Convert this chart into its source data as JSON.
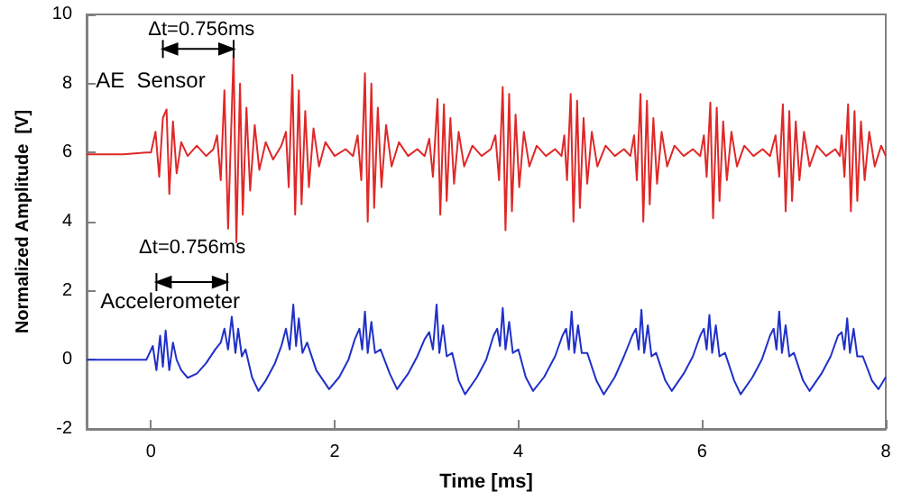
{
  "chart_data": {
    "type": "line",
    "xlabel": "Time [ms]",
    "ylabel": "Normalized Amplitude  [V]",
    "xlim": [
      -0.7,
      8
    ],
    "ylim": [
      -2,
      10
    ],
    "xticks": [
      0,
      2,
      4,
      6,
      8
    ],
    "yticks": [
      -2,
      0,
      2,
      4,
      6,
      8,
      10
    ],
    "grid": false,
    "legend": false,
    "marker": "none",
    "annotations": [
      "Δt=0.756ms",
      "Δt=0.756ms"
    ],
    "series": [
      {
        "name": "AE  Sensor",
        "color": "#e02828",
        "x": [
          -0.7,
          -0.3,
          -0.05,
          0.0,
          0.05,
          0.09,
          0.13,
          0.17,
          0.2,
          0.24,
          0.28,
          0.33,
          0.4,
          0.5,
          0.6,
          0.68,
          0.72,
          0.76,
          0.8,
          0.84,
          0.9,
          0.93,
          0.97,
          1.0,
          1.04,
          1.08,
          1.13,
          1.18,
          1.25,
          1.33,
          1.42,
          1.47,
          1.5,
          1.54,
          1.57,
          1.61,
          1.64,
          1.68,
          1.72,
          1.77,
          1.83,
          1.9,
          2.0,
          2.12,
          2.2,
          2.25,
          2.29,
          2.33,
          2.36,
          2.4,
          2.43,
          2.47,
          2.51,
          2.56,
          2.62,
          2.7,
          2.8,
          2.9,
          2.98,
          3.03,
          3.07,
          3.12,
          3.15,
          3.19,
          3.22,
          3.26,
          3.3,
          3.35,
          3.41,
          3.5,
          3.6,
          3.7,
          3.75,
          3.79,
          3.83,
          3.86,
          3.9,
          3.93,
          3.97,
          4.01,
          4.06,
          4.12,
          4.2,
          4.3,
          4.4,
          4.47,
          4.5,
          4.53,
          4.57,
          4.6,
          4.64,
          4.67,
          4.71,
          4.75,
          4.8,
          4.86,
          4.95,
          5.05,
          5.15,
          5.22,
          5.26,
          5.29,
          5.33,
          5.36,
          5.4,
          5.43,
          5.47,
          5.51,
          5.56,
          5.62,
          5.7,
          5.8,
          5.9,
          5.98,
          6.02,
          6.05,
          6.09,
          6.12,
          6.16,
          6.19,
          6.23,
          6.27,
          6.32,
          6.38,
          6.46,
          6.56,
          6.66,
          6.74,
          6.8,
          6.84,
          6.88,
          6.91,
          6.95,
          6.98,
          7.02,
          7.06,
          7.11,
          7.17,
          7.25,
          7.35,
          7.45,
          7.5,
          7.52,
          7.55,
          7.59,
          7.62,
          7.66,
          7.69,
          7.73,
          7.77,
          7.82,
          7.88,
          7.95,
          8.0
        ],
        "values": [
          5.95,
          5.95,
          6.0,
          6.0,
          6.6,
          5.3,
          7.0,
          7.25,
          4.8,
          6.9,
          5.4,
          6.3,
          5.9,
          6.2,
          5.9,
          6.1,
          6.5,
          5.2,
          7.8,
          3.8,
          8.9,
          3.4,
          8.0,
          4.2,
          7.3,
          4.9,
          6.8,
          5.5,
          6.3,
          5.8,
          6.2,
          6.6,
          5.0,
          8.25,
          4.2,
          7.8,
          4.5,
          7.2,
          5.0,
          6.7,
          5.6,
          6.3,
          5.9,
          6.1,
          5.9,
          6.5,
          5.2,
          8.3,
          4.0,
          8.0,
          4.4,
          7.3,
          5.0,
          6.8,
          5.6,
          6.3,
          5.9,
          6.1,
          5.9,
          6.4,
          5.3,
          7.55,
          4.2,
          7.4,
          4.6,
          7.0,
          5.1,
          6.6,
          5.6,
          6.2,
          5.9,
          6.1,
          6.5,
          5.2,
          7.9,
          3.75,
          7.7,
          4.3,
          7.1,
          5.0,
          6.6,
          5.6,
          6.2,
          5.9,
          6.1,
          5.9,
          6.5,
          5.2,
          7.7,
          4.0,
          7.5,
          4.4,
          7.0,
          5.1,
          6.6,
          5.6,
          6.2,
          5.9,
          6.1,
          5.9,
          6.5,
          5.2,
          7.7,
          4.0,
          7.5,
          4.5,
          7.0,
          5.1,
          6.6,
          5.6,
          6.2,
          5.9,
          6.1,
          5.9,
          6.5,
          5.3,
          7.45,
          4.1,
          7.3,
          4.6,
          6.9,
          5.2,
          6.6,
          5.6,
          6.2,
          5.9,
          6.1,
          5.9,
          6.5,
          5.3,
          7.4,
          4.3,
          7.2,
          4.6,
          6.9,
          5.2,
          6.6,
          5.6,
          6.2,
          5.9,
          6.1,
          5.9,
          6.5,
          5.3,
          7.4,
          4.3,
          7.2,
          4.6,
          6.9,
          5.2,
          6.6,
          5.6,
          6.2,
          5.9
        ]
      },
      {
        "name": "Accelerometer",
        "color": "#2030c8",
        "x": [
          -0.7,
          -0.3,
          -0.05,
          0.02,
          0.06,
          0.1,
          0.13,
          0.16,
          0.2,
          0.24,
          0.28,
          0.33,
          0.4,
          0.5,
          0.6,
          0.7,
          0.76,
          0.8,
          0.84,
          0.88,
          0.92,
          0.95,
          0.99,
          1.03,
          1.1,
          1.17,
          1.25,
          1.35,
          1.42,
          1.47,
          1.51,
          1.55,
          1.58,
          1.61,
          1.65,
          1.7,
          1.8,
          1.94,
          2.05,
          2.15,
          2.22,
          2.27,
          2.3,
          2.33,
          2.36,
          2.4,
          2.44,
          2.5,
          2.6,
          2.68,
          2.8,
          2.9,
          2.98,
          3.03,
          3.07,
          3.11,
          3.14,
          3.18,
          3.22,
          3.28,
          3.35,
          3.42,
          3.55,
          3.65,
          3.73,
          3.77,
          3.8,
          3.83,
          3.86,
          3.9,
          3.94,
          4.0,
          4.08,
          4.16,
          4.28,
          4.4,
          4.48,
          4.52,
          4.55,
          4.58,
          4.61,
          4.65,
          4.69,
          4.75,
          4.85,
          4.93,
          5.05,
          5.15,
          5.24,
          5.28,
          5.31,
          5.34,
          5.37,
          5.41,
          5.45,
          5.5,
          5.6,
          5.67,
          5.8,
          5.9,
          5.98,
          6.02,
          6.05,
          6.08,
          6.11,
          6.15,
          6.19,
          6.25,
          6.35,
          6.42,
          6.55,
          6.65,
          6.74,
          6.78,
          6.81,
          6.84,
          6.87,
          6.91,
          6.95,
          7.0,
          7.1,
          7.17,
          7.3,
          7.4,
          7.48,
          7.52,
          7.55,
          7.58,
          7.61,
          7.65,
          7.69,
          7.75,
          7.85,
          7.92,
          8.0
        ],
        "values": [
          0.0,
          0.0,
          0.0,
          0.4,
          -0.3,
          0.7,
          -0.2,
          0.85,
          -0.3,
          0.5,
          0.0,
          -0.3,
          -0.52,
          -0.4,
          -0.1,
          0.3,
          0.5,
          0.9,
          0.3,
          1.25,
          0.2,
          0.9,
          0.1,
          0.3,
          -0.5,
          -0.9,
          -0.6,
          -0.1,
          0.4,
          0.9,
          0.3,
          1.6,
          0.4,
          1.2,
          0.2,
          0.5,
          -0.3,
          -0.85,
          -0.5,
          0.0,
          0.6,
          0.9,
          0.3,
          1.4,
          0.2,
          1.1,
          0.2,
          0.3,
          -0.4,
          -0.85,
          -0.4,
          0.1,
          0.6,
          0.8,
          0.3,
          1.6,
          0.2,
          1.0,
          0.1,
          0.2,
          -0.6,
          -1.0,
          -0.5,
          0.0,
          0.7,
          0.9,
          0.4,
          1.5,
          0.3,
          1.1,
          0.2,
          0.3,
          -0.5,
          -0.9,
          -0.5,
          0.1,
          0.7,
          0.9,
          0.3,
          1.4,
          0.2,
          1.0,
          0.2,
          0.2,
          -0.6,
          -1.0,
          -0.5,
          0.1,
          0.7,
          0.9,
          0.3,
          1.45,
          0.2,
          1.0,
          0.1,
          0.2,
          -0.6,
          -0.9,
          -0.4,
          0.1,
          0.7,
          0.9,
          0.3,
          1.3,
          0.2,
          1.0,
          0.1,
          0.2,
          -0.6,
          -1.0,
          -0.5,
          0.0,
          0.7,
          0.9,
          0.3,
          1.4,
          0.2,
          1.0,
          0.1,
          0.2,
          -0.6,
          -0.9,
          -0.4,
          0.1,
          0.7,
          0.8,
          0.3,
          1.2,
          0.2,
          0.9,
          0.1,
          0.1,
          -0.6,
          -0.85,
          -0.5
        ]
      }
    ]
  }
}
